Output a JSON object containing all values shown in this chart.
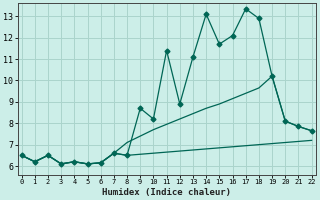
{
  "xlabel": "Humidex (Indice chaleur)",
  "bg_color": "#cceee8",
  "grid_color": "#aad4cc",
  "line_color": "#006655",
  "x_ticks": [
    0,
    1,
    2,
    3,
    4,
    5,
    6,
    7,
    8,
    9,
    10,
    11,
    12,
    13,
    14,
    15,
    16,
    17,
    18,
    19,
    20,
    21,
    22
  ],
  "y_ticks": [
    6,
    7,
    8,
    9,
    10,
    11,
    12,
    13
  ],
  "xlim": [
    -0.3,
    22.3
  ],
  "ylim": [
    5.6,
    13.6
  ],
  "series1_x": [
    0,
    1,
    2,
    3,
    4,
    5,
    6,
    7,
    8,
    9,
    10,
    11,
    12,
    13,
    14,
    15,
    16,
    17,
    18,
    19,
    20,
    21,
    22
  ],
  "series1_y": [
    6.5,
    6.2,
    6.5,
    6.1,
    6.2,
    6.1,
    6.15,
    6.6,
    6.5,
    8.7,
    8.2,
    11.4,
    8.9,
    11.1,
    13.1,
    11.7,
    12.1,
    13.35,
    12.9,
    10.2,
    8.1,
    7.85,
    7.65
  ],
  "series2_x": [
    0,
    1,
    2,
    3,
    4,
    5,
    6,
    7,
    8,
    9,
    10,
    11,
    12,
    13,
    14,
    15,
    16,
    17,
    18,
    19,
    20,
    21,
    22
  ],
  "series2_y": [
    6.5,
    6.2,
    6.5,
    6.1,
    6.2,
    6.1,
    6.15,
    6.6,
    7.1,
    7.4,
    7.7,
    7.95,
    8.2,
    8.45,
    8.7,
    8.9,
    9.15,
    9.4,
    9.65,
    10.2,
    8.1,
    7.85,
    7.65
  ],
  "series3_x": [
    0,
    1,
    2,
    3,
    4,
    5,
    6,
    7,
    8,
    9,
    10,
    11,
    12,
    13,
    14,
    15,
    16,
    17,
    18,
    19,
    20,
    21,
    22
  ],
  "series3_y": [
    6.5,
    6.2,
    6.5,
    6.1,
    6.2,
    6.1,
    6.15,
    6.6,
    6.5,
    6.55,
    6.6,
    6.65,
    6.7,
    6.75,
    6.8,
    6.85,
    6.9,
    6.95,
    7.0,
    7.05,
    7.1,
    7.15,
    7.2
  ]
}
